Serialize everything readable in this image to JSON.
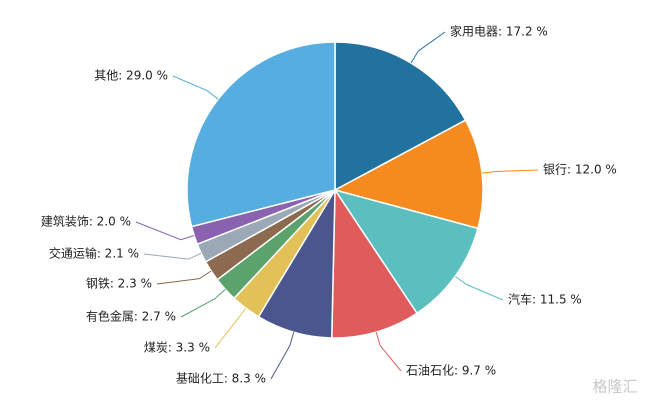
{
  "chart_data": {
    "type": "pie",
    "values": [
      17.2,
      12.0,
      11.5,
      9.7,
      8.3,
      3.3,
      2.7,
      2.3,
      2.1,
      2.0,
      29.0
    ],
    "value_labels": [
      "家用电器: 17.2 %",
      "银行: 12.0 %",
      "汽车: 11.5 %",
      "石油石化: 9.7 %",
      "基础化工: 8.3 %",
      "煤炭: 3.3 %",
      "有色金属: 2.7 %",
      "钢铁: 2.3 %",
      "交通运输: 2.1 %",
      "建筑装饰: 2.0 %",
      "其他: 29.0 %"
    ],
    "colors": [
      "#2272a0",
      "#f58a1f",
      "#5bbfc0",
      "#e05c5c",
      "#4b568e",
      "#e2c158",
      "#5aa36d",
      "#8b6a4f",
      "#9ba9b6",
      "#8a63b0",
      "#55aedf"
    ],
    "watermark": "格隆汇"
  }
}
